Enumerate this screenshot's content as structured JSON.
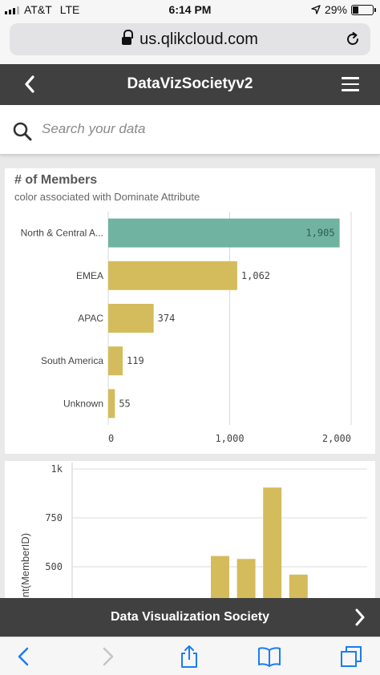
{
  "status_bar": {
    "carrier": "AT&T",
    "network": "LTE",
    "time": "6:14 PM",
    "battery": "29%",
    "battery_level": 0.29
  },
  "browser": {
    "url": "us.qlikcloud.com"
  },
  "header": {
    "title": "DataVizSocietyv2"
  },
  "search": {
    "placeholder": "Search your data"
  },
  "chart1": {
    "title": "# of Members",
    "subtitle": "color associated with Dominate Attribute",
    "colors": {
      "teal": "#6fb3a0",
      "gold": "#d4bc5c"
    },
    "chart_data": {
      "type": "bar",
      "orientation": "horizontal",
      "categories": [
        "North & Central A...",
        "EMEA",
        "APAC",
        "South America",
        "Unknown"
      ],
      "values": [
        1905,
        1062,
        374,
        119,
        55
      ],
      "value_labels": [
        "1,905",
        "1,062",
        "374",
        "119",
        "55"
      ],
      "bar_colors": [
        "#6fb3a0",
        "#d4bc5c",
        "#d4bc5c",
        "#d4bc5c",
        "#d4bc5c"
      ],
      "xlim": [
        0,
        2000
      ],
      "xticks": [
        0,
        1000,
        2000
      ],
      "xtick_labels": [
        "0",
        "1,000",
        "2,000"
      ],
      "grid": true
    }
  },
  "chart2": {
    "ylabel": "nt(MemberID)",
    "chart_data": {
      "type": "bar",
      "ylim": [
        0,
        1000
      ],
      "yticks": [
        500,
        750,
        1000
      ],
      "ytick_labels": [
        "500",
        "750",
        "1k"
      ],
      "values": [
        null,
        null,
        null,
        null,
        null,
        555,
        540,
        905,
        460
      ],
      "bar_color": "#d4bc5c",
      "grid": true
    }
  },
  "footer": {
    "title": "Data Visualization Society"
  }
}
